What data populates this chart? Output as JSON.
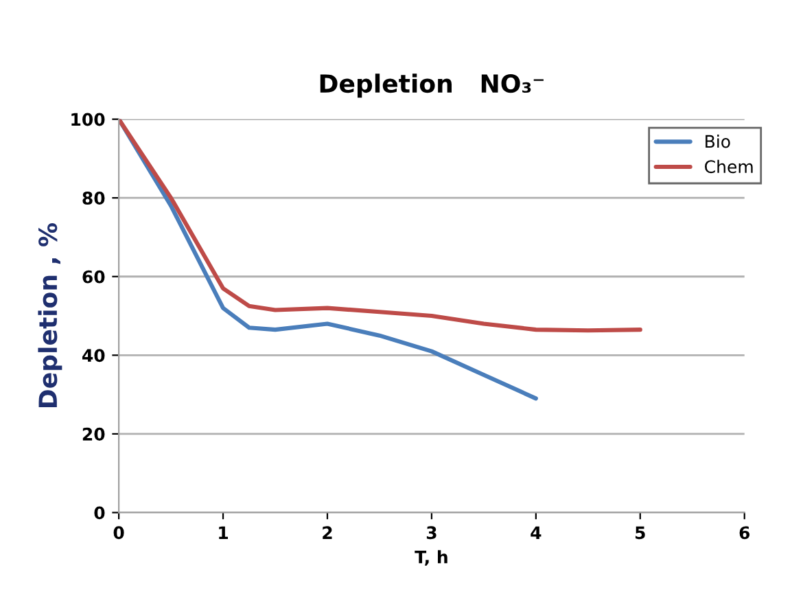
{
  "chart_data": {
    "type": "line",
    "title": "Depletion   NO₃⁻",
    "xlabel": "T, h",
    "ylabel": "Depletion , %",
    "xlim": [
      0,
      6
    ],
    "xticks": [
      0,
      1,
      2,
      3,
      4,
      5,
      6
    ],
    "ylim": [
      0,
      100
    ],
    "yticks": [
      0,
      20,
      40,
      60,
      80,
      100
    ],
    "grid": "y",
    "legend": "top right",
    "line_style": "solid",
    "series": [
      {
        "name": "Bio",
        "color": "#4a7ebb",
        "x": [
          0,
          0.5,
          1,
          1.25,
          1.5,
          2,
          2.5,
          3,
          3.5,
          4
        ],
        "values": [
          100,
          78,
          52,
          47,
          46.5,
          48,
          45,
          41,
          35,
          29
        ]
      },
      {
        "name": "Chem",
        "color": "#be4b48",
        "x": [
          0,
          0.5,
          1,
          1.25,
          1.5,
          2,
          2.5,
          3,
          3.5,
          4,
          4.5,
          5
        ],
        "values": [
          100,
          80,
          57,
          52.5,
          51.5,
          52,
          51,
          50,
          48,
          46.5,
          46.3,
          46.5
        ]
      }
    ]
  }
}
